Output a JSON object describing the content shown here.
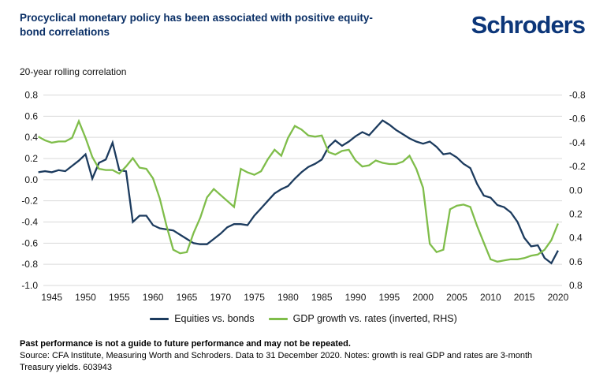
{
  "header": {
    "title": "Procyclical monetary policy has been associated with positive equity-bond correlations",
    "logo": "Schroders"
  },
  "chart": {
    "subtitle": "20-year rolling correlation",
    "grid_color": "#d9d9d9",
    "tick_color": "#1a1a1a"
  },
  "legend": [
    {
      "label": "Equities vs. bonds",
      "color": "#1c3b5e"
    },
    {
      "label": "GDP growth vs. rates (inverted, RHS)",
      "color": "#7fbd4a"
    }
  ],
  "footer": {
    "warning": "Past performance is not a guide to future performance and may not be repeated.",
    "source_line1": "Source: CFA Institute, Measuring Worth and Schroders. Data to 31 December 2020. Notes: growth is real GDP and rates are 3-month",
    "source_line2": "Treasury yields. 603943"
  },
  "chart_data": {
    "type": "line",
    "title": "Procyclical monetary policy has been associated with positive equity-bond correlations",
    "ylabel": "20-year rolling correlation",
    "grid": "horizontal",
    "left_axis": {
      "range": [
        -1.0,
        0.8
      ],
      "ticks": [
        "0.8",
        "0.6",
        "0.4",
        "0.2",
        "0.0",
        "-0.2",
        "-0.4",
        "-0.6",
        "-0.8",
        "-1.0"
      ]
    },
    "right_axis": {
      "range": [
        -0.8,
        0.8
      ],
      "inverted": true,
      "ticks": [
        "-0.8",
        "-0.6",
        "-0.4",
        "-0.2",
        "0.0",
        "0.2",
        "0.4",
        "0.6",
        "0.8"
      ]
    },
    "x_ticks": [
      1945,
      1950,
      1955,
      1960,
      1965,
      1970,
      1975,
      1980,
      1985,
      1990,
      1995,
      2000,
      2005,
      2010,
      2015,
      2020
    ],
    "x": [
      1943,
      1944,
      1945,
      1946,
      1947,
      1948,
      1949,
      1950,
      1951,
      1952,
      1953,
      1954,
      1955,
      1956,
      1957,
      1958,
      1959,
      1960,
      1961,
      1962,
      1963,
      1964,
      1965,
      1966,
      1967,
      1968,
      1969,
      1970,
      1971,
      1972,
      1973,
      1974,
      1975,
      1976,
      1977,
      1978,
      1979,
      1980,
      1981,
      1982,
      1983,
      1984,
      1985,
      1986,
      1987,
      1988,
      1989,
      1990,
      1991,
      1992,
      1993,
      1994,
      1995,
      1996,
      1997,
      1998,
      1999,
      2000,
      2001,
      2002,
      2003,
      2004,
      2005,
      2006,
      2007,
      2008,
      2009,
      2010,
      2011,
      2012,
      2013,
      2014,
      2015,
      2016,
      2017,
      2018,
      2019,
      2020
    ],
    "series": [
      {
        "name": "Equities vs. bonds",
        "axis": "left",
        "color": "#1c3b5e",
        "values": [
          0.07,
          0.08,
          0.07,
          0.09,
          0.08,
          0.13,
          0.18,
          0.24,
          0.01,
          0.16,
          0.19,
          0.35,
          0.09,
          0.08,
          -0.4,
          -0.34,
          -0.34,
          -0.43,
          -0.46,
          -0.47,
          -0.48,
          -0.52,
          -0.56,
          -0.6,
          -0.61,
          -0.61,
          -0.56,
          -0.51,
          -0.45,
          -0.42,
          -0.42,
          -0.43,
          -0.34,
          -0.27,
          -0.2,
          -0.13,
          -0.09,
          -0.06,
          0.01,
          0.07,
          0.12,
          0.15,
          0.19,
          0.31,
          0.37,
          0.32,
          0.36,
          0.41,
          0.45,
          0.42,
          0.49,
          0.56,
          0.52,
          0.47,
          0.43,
          0.39,
          0.36,
          0.34,
          0.36,
          0.31,
          0.24,
          0.25,
          0.21,
          0.15,
          0.11,
          -0.04,
          -0.15,
          -0.17,
          -0.24,
          -0.26,
          -0.31,
          -0.4,
          -0.55,
          -0.63,
          -0.62,
          -0.74,
          -0.79,
          -0.67
        ]
      },
      {
        "name": "GDP growth vs. rates (inverted, RHS)",
        "axis": "right_inverted",
        "color": "#7fbd4a",
        "values": [
          -0.45,
          -0.42,
          -0.4,
          -0.41,
          -0.41,
          -0.44,
          -0.58,
          -0.44,
          -0.28,
          -0.18,
          -0.17,
          -0.17,
          -0.14,
          -0.2,
          -0.27,
          -0.19,
          -0.18,
          -0.1,
          0.07,
          0.3,
          0.5,
          0.53,
          0.52,
          0.36,
          0.23,
          0.06,
          -0.01,
          0.04,
          0.09,
          0.14,
          -0.18,
          -0.15,
          -0.13,
          -0.16,
          -0.26,
          -0.34,
          -0.29,
          -0.44,
          -0.54,
          -0.51,
          -0.46,
          -0.45,
          -0.46,
          -0.32,
          -0.3,
          -0.33,
          -0.34,
          -0.25,
          -0.2,
          -0.21,
          -0.25,
          -0.23,
          -0.22,
          -0.22,
          -0.24,
          -0.29,
          -0.18,
          -0.02,
          0.45,
          0.52,
          0.5,
          0.16,
          0.13,
          0.12,
          0.14,
          0.3,
          0.44,
          0.58,
          0.6,
          0.59,
          0.58,
          0.58,
          0.57,
          0.55,
          0.54,
          0.5,
          0.42,
          0.28
        ]
      }
    ]
  }
}
